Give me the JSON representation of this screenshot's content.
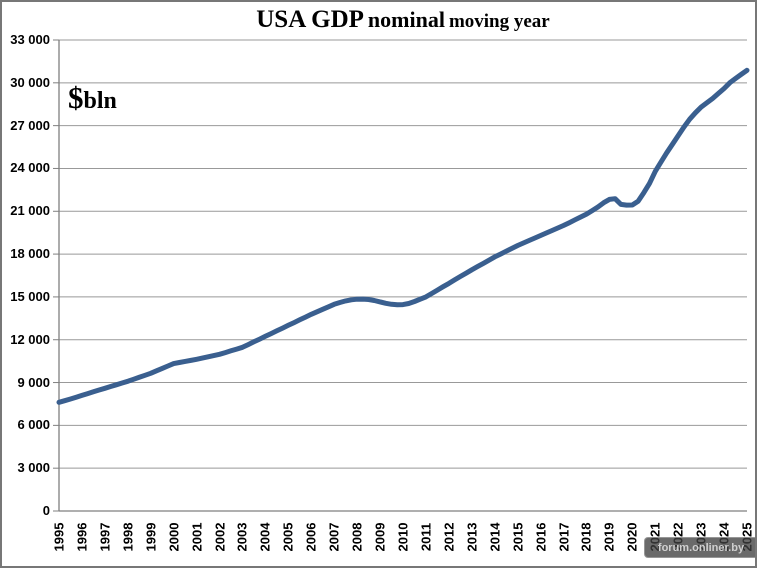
{
  "title": {
    "part1": "USA GDP",
    "part2": "nominal",
    "part3": "moving year"
  },
  "unit_label": {
    "symbol": "$",
    "text": "bln"
  },
  "watermark": "forum.onliner.by",
  "colors": {
    "line": "#3a5f8f",
    "grid": "#999999",
    "axis": "#7f7f7f",
    "watermark_bg": "rgba(64,64,64,0.78)",
    "watermark_border": "rgba(255,255,255,0.3)",
    "watermark_text": "#d0d0d0"
  },
  "chart_data": {
    "type": "line",
    "title": "USA GDP nominal moving year",
    "xlabel": "",
    "ylabel": "$bln",
    "xlim": [
      1995,
      2025
    ],
    "ylim": [
      0,
      33000
    ],
    "grid": true,
    "legend": false,
    "x_tick_labels": [
      "1995",
      "1996",
      "1997",
      "1998",
      "1999",
      "2000",
      "2001",
      "2002",
      "2003",
      "2004",
      "2005",
      "2006",
      "2007",
      "2008",
      "2009",
      "2010",
      "2011",
      "2012",
      "2013",
      "2014",
      "2015",
      "2016",
      "2017",
      "2018",
      "2019",
      "2020",
      "2021",
      "2022",
      "2023",
      "2024",
      "2025"
    ],
    "y_ticks": [
      0,
      3000,
      6000,
      9000,
      12000,
      15000,
      18000,
      21000,
      24000,
      27000,
      30000,
      33000
    ],
    "y_tick_labels": [
      "0",
      "3 000",
      "6 000",
      "9 000",
      "12 000",
      "15 000",
      "18 000",
      "21 000",
      "24 000",
      "27 000",
      "30 000",
      "33 000"
    ],
    "series": [
      {
        "name": "USA GDP nominal, moving year ($bln)",
        "x_start": 1995,
        "x_step": 0.25,
        "values": [
          7615,
          7730,
          7850,
          7975,
          8100,
          8225,
          8350,
          8475,
          8600,
          8720,
          8845,
          8965,
          9090,
          9230,
          9370,
          9510,
          9650,
          9820,
          9990,
          10160,
          10330,
          10405,
          10480,
          10555,
          10630,
          10715,
          10805,
          10890,
          10980,
          11100,
          11225,
          11345,
          11470,
          11660,
          11855,
          12045,
          12240,
          12430,
          12625,
          12815,
          13010,
          13200,
          13395,
          13585,
          13780,
          13955,
          14130,
          14305,
          14480,
          14610,
          14720,
          14800,
          14840,
          14850,
          14820,
          14750,
          14650,
          14550,
          14480,
          14450,
          14460,
          14540,
          14680,
          14840,
          15000,
          15240,
          15480,
          15715,
          15950,
          16190,
          16430,
          16660,
          16900,
          17125,
          17350,
          17575,
          17800,
          18000,
          18200,
          18400,
          18600,
          18775,
          18950,
          19125,
          19300,
          19475,
          19650,
          19825,
          20000,
          20200,
          20400,
          20600,
          20800,
          21050,
          21300,
          21600,
          21830,
          21880,
          21480,
          21430,
          21440,
          21700,
          22300,
          22950,
          23800,
          24450,
          25100,
          25700,
          26300,
          26900,
          27450,
          27900,
          28300,
          28600,
          28900,
          29250,
          29600,
          30000,
          30300,
          30600,
          30880
        ]
      }
    ]
  }
}
